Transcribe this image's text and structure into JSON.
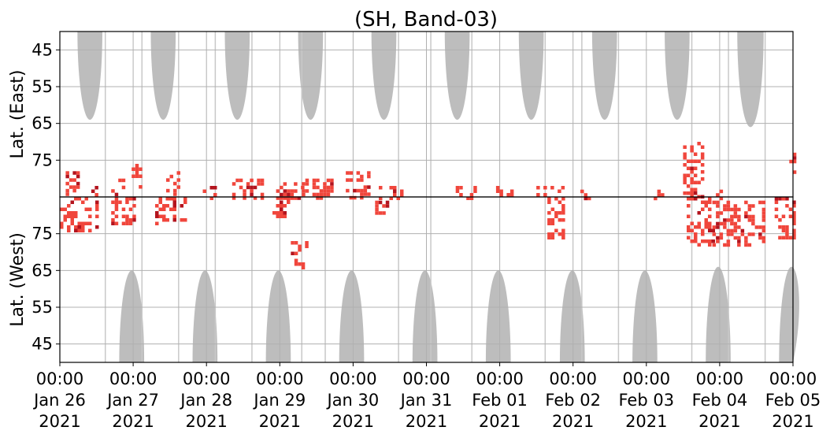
{
  "chart_data": {
    "type": "heatmap",
    "title": "(SH, Band-03)",
    "panels": [
      {
        "name": "east",
        "ylabel": "Lat. (East)",
        "yticks": [
          45,
          55,
          65,
          75
        ],
        "ylim_top": 40,
        "ylim_bottom": 85
      },
      {
        "name": "west",
        "ylabel": "Lat. (West)",
        "yticks": [
          75,
          65,
          55,
          45
        ],
        "ylim_top": 85,
        "ylim_bottom": 40
      }
    ],
    "x_ticks": [
      {
        "time": "00:00",
        "date": "Jan 26",
        "year": "2021"
      },
      {
        "time": "00:00",
        "date": "Jan 27",
        "year": "2021"
      },
      {
        "time": "00:00",
        "date": "Jan 28",
        "year": "2021"
      },
      {
        "time": "00:00",
        "date": "Jan 29",
        "year": "2021"
      },
      {
        "time": "00:00",
        "date": "Jan 30",
        "year": "2021"
      },
      {
        "time": "00:00",
        "date": "Jan 31",
        "year": "2021"
      },
      {
        "time": "00:00",
        "date": "Feb 01",
        "year": "2021"
      },
      {
        "time": "00:00",
        "date": "Feb 02",
        "year": "2021"
      },
      {
        "time": "00:00",
        "date": "Feb 03",
        "year": "2021"
      },
      {
        "time": "00:00",
        "date": "Feb 04",
        "year": "2021"
      },
      {
        "time": "00:00",
        "date": "Feb 05",
        "year": "2021"
      }
    ],
    "x_range_days": [
      0,
      10
    ],
    "grid": true,
    "colors": {
      "coverage": "#bdbdbd",
      "detection": "#f0463c",
      "strong_detection": "#b3141e",
      "grid": "#b0b0b0",
      "gap_line": "#c8c8c8"
    },
    "gray_coverage": {
      "east": [
        {
          "center": 0.41,
          "halfwidth_top": 0.17,
          "bottom": 64
        },
        {
          "center": 1.41,
          "halfwidth_top": 0.17,
          "bottom": 64
        },
        {
          "center": 2.42,
          "halfwidth_top": 0.17,
          "bottom": 64
        },
        {
          "center": 3.42,
          "halfwidth_top": 0.17,
          "bottom": 64
        },
        {
          "center": 4.42,
          "halfwidth_top": 0.17,
          "bottom": 64
        },
        {
          "center": 5.42,
          "halfwidth_top": 0.17,
          "bottom": 64
        },
        {
          "center": 6.43,
          "halfwidth_top": 0.17,
          "bottom": 64
        },
        {
          "center": 7.43,
          "halfwidth_top": 0.17,
          "bottom": 64
        },
        {
          "center": 8.42,
          "halfwidth_top": 0.17,
          "bottom": 64
        },
        {
          "center": 9.42,
          "halfwidth_top": 0.18,
          "bottom": 66
        }
      ],
      "west": [
        {
          "center": 0.98,
          "halfwidth_bottom": 0.17,
          "top": 65
        },
        {
          "center": 1.98,
          "halfwidth_bottom": 0.17,
          "top": 65
        },
        {
          "center": 2.98,
          "halfwidth_bottom": 0.17,
          "top": 65
        },
        {
          "center": 3.98,
          "halfwidth_bottom": 0.17,
          "top": 65
        },
        {
          "center": 4.98,
          "halfwidth_bottom": 0.17,
          "top": 65
        },
        {
          "center": 5.98,
          "halfwidth_bottom": 0.17,
          "top": 65
        },
        {
          "center": 6.99,
          "halfwidth_bottom": 0.17,
          "top": 65
        },
        {
          "center": 7.98,
          "halfwidth_bottom": 0.17,
          "top": 65
        },
        {
          "center": 8.98,
          "halfwidth_bottom": 0.17,
          "top": 66
        },
        {
          "center": 9.98,
          "halfwidth_bottom": 0.17,
          "top": 66
        }
      ]
    },
    "data_gap_days": [
      0.62,
      1.12,
      1.62,
      2.12,
      2.62,
      3.3,
      3.62,
      4.62,
      5.06,
      5.62,
      6.62,
      7.12,
      7.62,
      8.62,
      9.12,
      9.62
    ],
    "detections": {
      "east": [
        {
          "t0": 0.08,
          "t1": 0.24,
          "lat0": 78,
          "lat1": 84
        },
        {
          "t0": 0.38,
          "t1": 0.5,
          "lat0": 82,
          "lat1": 84
        },
        {
          "t0": 0.7,
          "t1": 0.86,
          "lat0": 80,
          "lat1": 84
        },
        {
          "t0": 0.98,
          "t1": 1.12,
          "lat0": 76,
          "lat1": 82
        },
        {
          "t0": 1.45,
          "t1": 1.6,
          "lat0": 78,
          "lat1": 84
        },
        {
          "t0": 1.95,
          "t1": 2.1,
          "lat0": 82,
          "lat1": 85
        },
        {
          "t0": 2.35,
          "t1": 2.75,
          "lat0": 80,
          "lat1": 85
        },
        {
          "t0": 2.95,
          "t1": 3.3,
          "lat0": 81,
          "lat1": 85
        },
        {
          "t0": 3.3,
          "t1": 3.7,
          "lat0": 80,
          "lat1": 85
        },
        {
          "t0": 3.9,
          "t1": 4.2,
          "lat0": 78,
          "lat1": 85
        },
        {
          "t0": 4.35,
          "t1": 4.65,
          "lat0": 82,
          "lat1": 85
        },
        {
          "t0": 5.4,
          "t1": 5.65,
          "lat0": 82,
          "lat1": 85
        },
        {
          "t0": 5.95,
          "t1": 6.15,
          "lat0": 82,
          "lat1": 84
        },
        {
          "t0": 6.5,
          "t1": 6.85,
          "lat0": 82,
          "lat1": 84
        },
        {
          "t0": 7.1,
          "t1": 7.2,
          "lat0": 83,
          "lat1": 85
        },
        {
          "t0": 8.1,
          "t1": 8.2,
          "lat0": 83,
          "lat1": 85
        },
        {
          "t0": 8.5,
          "t1": 8.75,
          "lat0": 70,
          "lat1": 85
        },
        {
          "t0": 8.9,
          "t1": 9.0,
          "lat0": 83,
          "lat1": 85
        },
        {
          "t0": 9.95,
          "t1": 10.0,
          "lat0": 72,
          "lat1": 78
        }
      ],
      "west": [
        {
          "t0": 0.0,
          "t1": 0.5,
          "lat0": 76,
          "lat1": 85
        },
        {
          "t0": 0.7,
          "t1": 1.0,
          "lat0": 78,
          "lat1": 85
        },
        {
          "t0": 1.3,
          "t1": 1.7,
          "lat0": 78,
          "lat1": 85
        },
        {
          "t0": 2.9,
          "t1": 3.1,
          "lat0": 80,
          "lat1": 85
        },
        {
          "t0": 3.15,
          "t1": 3.35,
          "lat0": 66,
          "lat1": 73
        },
        {
          "t0": 4.3,
          "t1": 4.45,
          "lat0": 80,
          "lat1": 84
        },
        {
          "t0": 6.65,
          "t1": 6.85,
          "lat0": 74,
          "lat1": 85
        },
        {
          "t0": 8.55,
          "t1": 8.9,
          "lat0": 72,
          "lat1": 85
        },
        {
          "t0": 8.9,
          "t1": 9.6,
          "lat0": 72,
          "lat1": 84
        },
        {
          "t0": 9.75,
          "t1": 10.0,
          "lat0": 74,
          "lat1": 85
        }
      ]
    }
  }
}
